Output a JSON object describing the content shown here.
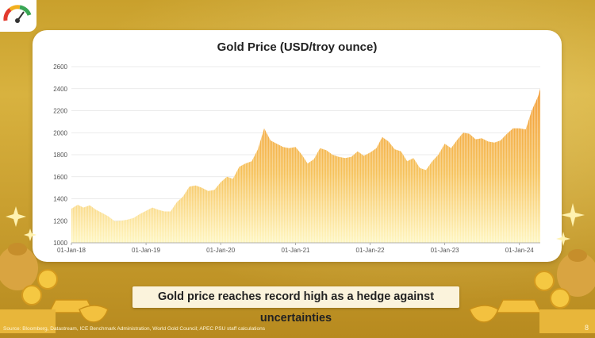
{
  "slide": {
    "caption": "Gold price reaches record high as a hedge against uncertainties",
    "source": "Source: Bloomberg, Datastream, ICE Benchmark Administration, World Gold Council; APEC PSU staff calculations",
    "page_number": "8",
    "colors": {
      "background": "#caa030",
      "card": "#ffffff",
      "bar_top": "#f0a23a",
      "bar_bottom": "#fff5b8"
    }
  },
  "chart_data": {
    "type": "area",
    "title": "Gold Price (USD/troy ounce)",
    "xlabel": "",
    "ylabel": "",
    "ylim": [
      1000,
      2600
    ],
    "yticks": [
      1000,
      1200,
      1400,
      1600,
      1800,
      2000,
      2200,
      2400,
      2600
    ],
    "xticks": [
      "01-Jan-18",
      "01-Jan-19",
      "01-Jan-20",
      "01-Jan-21",
      "01-Jan-22",
      "01-Jan-23",
      "01-Jan-24"
    ],
    "xlim": [
      "2018-01-01",
      "2024-04-12"
    ],
    "grid": true,
    "legend": "none",
    "series": [
      {
        "name": "",
        "points": [
          [
            "2018-01-01",
            1310
          ],
          [
            "2018-02-01",
            1345
          ],
          [
            "2018-03-01",
            1320
          ],
          [
            "2018-04-01",
            1340
          ],
          [
            "2018-05-01",
            1300
          ],
          [
            "2018-06-01",
            1270
          ],
          [
            "2018-07-01",
            1240
          ],
          [
            "2018-08-01",
            1195
          ],
          [
            "2018-09-01",
            1200
          ],
          [
            "2018-10-01",
            1210
          ],
          [
            "2018-11-01",
            1225
          ],
          [
            "2018-12-01",
            1260
          ],
          [
            "2019-01-01",
            1290
          ],
          [
            "2019-02-01",
            1320
          ],
          [
            "2019-03-01",
            1300
          ],
          [
            "2019-04-01",
            1285
          ],
          [
            "2019-05-01",
            1285
          ],
          [
            "2019-06-01",
            1370
          ],
          [
            "2019-07-01",
            1420
          ],
          [
            "2019-08-01",
            1510
          ],
          [
            "2019-09-01",
            1520
          ],
          [
            "2019-10-01",
            1500
          ],
          [
            "2019-11-01",
            1470
          ],
          [
            "2019-12-01",
            1480
          ],
          [
            "2020-01-01",
            1550
          ],
          [
            "2020-02-01",
            1600
          ],
          [
            "2020-03-01",
            1580
          ],
          [
            "2020-04-01",
            1690
          ],
          [
            "2020-05-01",
            1720
          ],
          [
            "2020-06-01",
            1740
          ],
          [
            "2020-07-01",
            1850
          ],
          [
            "2020-08-01",
            2040
          ],
          [
            "2020-09-01",
            1930
          ],
          [
            "2020-10-01",
            1900
          ],
          [
            "2020-11-01",
            1870
          ],
          [
            "2020-12-01",
            1860
          ],
          [
            "2021-01-01",
            1870
          ],
          [
            "2021-02-01",
            1800
          ],
          [
            "2021-03-01",
            1720
          ],
          [
            "2021-04-01",
            1760
          ],
          [
            "2021-05-01",
            1860
          ],
          [
            "2021-06-01",
            1840
          ],
          [
            "2021-07-01",
            1800
          ],
          [
            "2021-08-01",
            1780
          ],
          [
            "2021-09-01",
            1770
          ],
          [
            "2021-10-01",
            1780
          ],
          [
            "2021-11-01",
            1830
          ],
          [
            "2021-12-01",
            1790
          ],
          [
            "2022-01-01",
            1820
          ],
          [
            "2022-02-01",
            1860
          ],
          [
            "2022-03-01",
            1960
          ],
          [
            "2022-04-01",
            1920
          ],
          [
            "2022-05-01",
            1850
          ],
          [
            "2022-06-01",
            1830
          ],
          [
            "2022-07-01",
            1740
          ],
          [
            "2022-08-01",
            1770
          ],
          [
            "2022-09-01",
            1680
          ],
          [
            "2022-10-01",
            1660
          ],
          [
            "2022-11-01",
            1740
          ],
          [
            "2022-12-01",
            1800
          ],
          [
            "2023-01-01",
            1900
          ],
          [
            "2023-02-01",
            1860
          ],
          [
            "2023-03-01",
            1930
          ],
          [
            "2023-04-01",
            2000
          ],
          [
            "2023-05-01",
            1990
          ],
          [
            "2023-06-01",
            1940
          ],
          [
            "2023-07-01",
            1950
          ],
          [
            "2023-08-01",
            1920
          ],
          [
            "2023-09-01",
            1910
          ],
          [
            "2023-10-01",
            1930
          ],
          [
            "2023-11-01",
            1990
          ],
          [
            "2023-12-01",
            2040
          ],
          [
            "2024-01-01",
            2040
          ],
          [
            "2024-02-01",
            2030
          ],
          [
            "2024-03-01",
            2200
          ],
          [
            "2024-04-01",
            2330
          ],
          [
            "2024-04-12",
            2400
          ]
        ]
      }
    ]
  }
}
